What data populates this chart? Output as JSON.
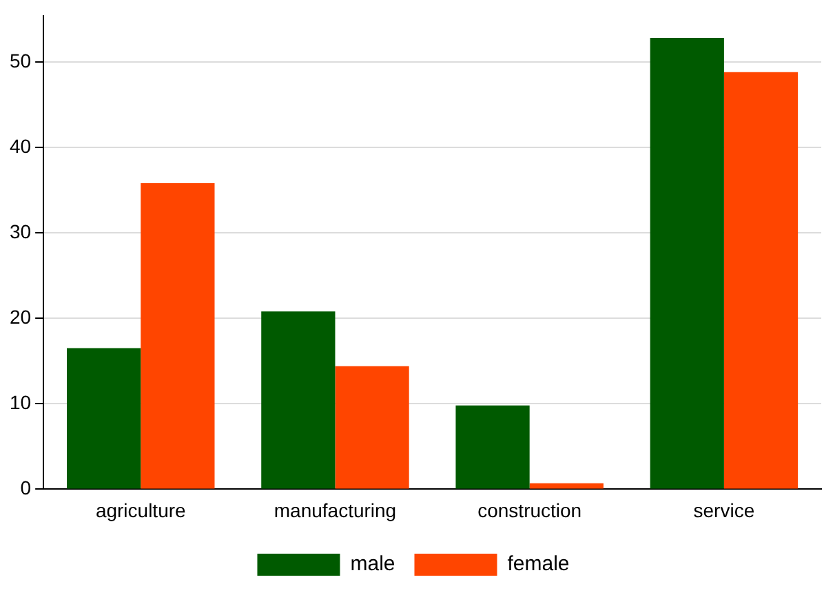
{
  "chart_data": {
    "type": "bar",
    "categories": [
      "agriculture",
      "manufacturing",
      "construction",
      "service"
    ],
    "series": [
      {
        "name": "male",
        "color": "#005a00",
        "values": [
          16.5,
          20.8,
          9.8,
          52.8
        ]
      },
      {
        "name": "female",
        "color": "#ff4500",
        "values": [
          35.8,
          14.4,
          0.7,
          48.8
        ]
      }
    ],
    "ylim": [
      0,
      55.4
    ],
    "yticks": [
      0,
      10,
      20,
      30,
      40,
      50
    ],
    "grid": "y",
    "legend": "bottom"
  }
}
